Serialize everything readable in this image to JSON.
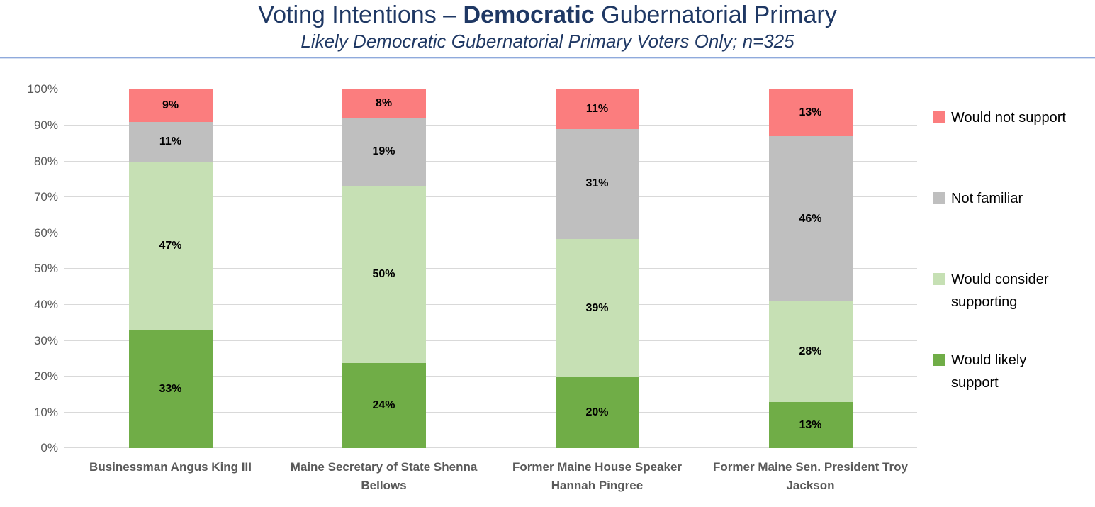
{
  "header": {
    "title_prefix": "Voting Intentions – ",
    "title_bold": "Democratic",
    "title_suffix": " Gubernatorial Primary",
    "subtitle": "Likely Democratic Gubernatorial Primary Voters Only; n=325"
  },
  "colors": {
    "title_text": "#1F3864",
    "divider": "#8FAADC",
    "axis_text": "#595959",
    "gridline": "#D9D9D9",
    "value_label": "#000000"
  },
  "chart_data": {
    "type": "bar",
    "stacked": true,
    "title": "Voting Intentions – Democratic Gubernatorial Primary",
    "subtitle": "Likely Democratic Gubernatorial Primary Voters Only; n=325",
    "categories": [
      "Businessman Angus King III",
      "Maine Secretary of State Shenna Bellows",
      "Former Maine House Speaker Hannah Pingree",
      "Former Maine Sen. President Troy Jackson"
    ],
    "series": [
      {
        "name": "Would likely support",
        "color": "#70AD47",
        "values": [
          33,
          24,
          20,
          13
        ]
      },
      {
        "name": "Would consider supporting",
        "color": "#C6E0B4",
        "values": [
          47,
          50,
          39,
          28
        ]
      },
      {
        "name": "Not familiar",
        "color": "#BFBFBF",
        "values": [
          11,
          19,
          31,
          46
        ]
      },
      {
        "name": "Would not support",
        "color": "#FB7D7E",
        "values": [
          9,
          8,
          11,
          13
        ]
      }
    ],
    "value_suffix": "%",
    "xlabel": "",
    "ylabel": "",
    "ylim": [
      0,
      100
    ],
    "y_step": 10,
    "y_tick_labels": [
      "0%",
      "10%",
      "20%",
      "30%",
      "40%",
      "50%",
      "60%",
      "70%",
      "80%",
      "90%",
      "100%"
    ],
    "grid": true,
    "legend": {
      "position": "right",
      "items_top_to_bottom": [
        "Would not support",
        "Not familiar",
        "Would consider supporting",
        "Would likely support"
      ]
    }
  }
}
